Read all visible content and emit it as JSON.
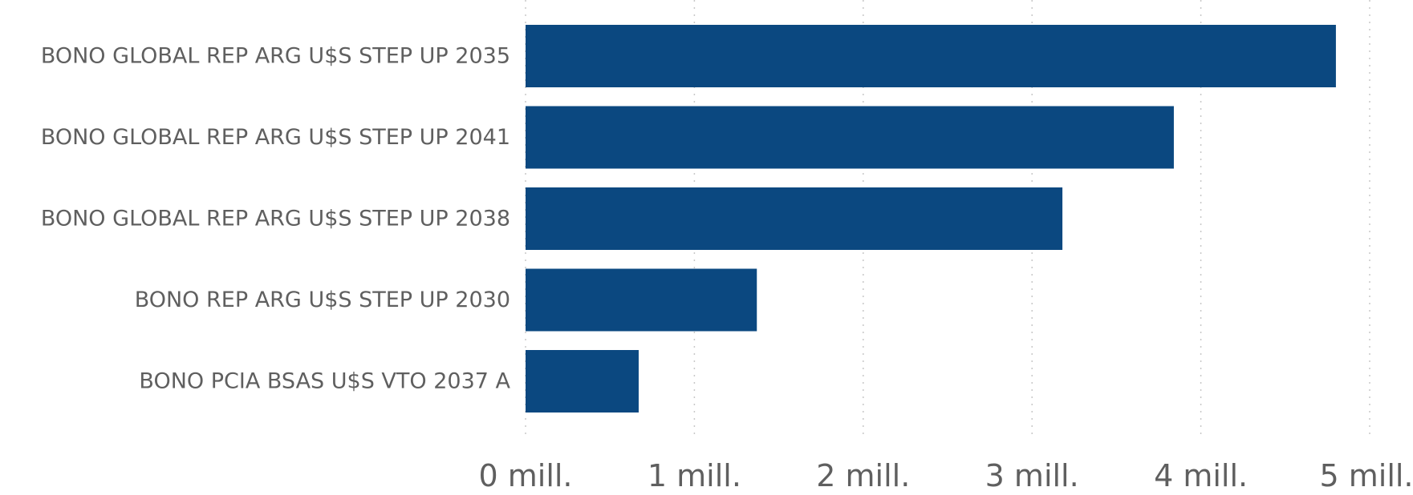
{
  "chart_data": {
    "type": "bar",
    "orientation": "horizontal",
    "categories": [
      "BONO GLOBAL REP ARG U$S STEP UP 2035",
      "BONO GLOBAL REP ARG U$S STEP UP 2041",
      "BONO GLOBAL REP ARG U$S STEP UP 2038",
      "BONO REP ARG U$S STEP UP 2030",
      "BONO PCIA BSAS U$S VTO 2037 A"
    ],
    "values": [
      4800000,
      3840000,
      3180000,
      1370000,
      670000
    ],
    "xlim": [
      0,
      5000000
    ],
    "x_ticks": [
      {
        "value": 0,
        "label": "0 mill."
      },
      {
        "value": 1000000,
        "label": "1 mill."
      },
      {
        "value": 2000000,
        "label": "2 mill."
      },
      {
        "value": 3000000,
        "label": "3 mill."
      },
      {
        "value": 4000000,
        "label": "4 mill."
      },
      {
        "value": 5000000,
        "label": "5 mill."
      }
    ],
    "grid": true,
    "bar_color": "#0b4880",
    "title": "",
    "xlabel": "",
    "ylabel": ""
  }
}
